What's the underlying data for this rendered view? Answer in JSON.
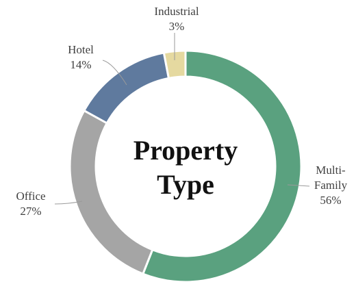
{
  "chart_data": {
    "type": "donut",
    "title": "Property Type",
    "categories": [
      "Multi-Family",
      "Office",
      "Hotel",
      "Industrial"
    ],
    "values": [
      56,
      27,
      14,
      3
    ],
    "value_labels": [
      "56%",
      "27%",
      "14%",
      "3%"
    ],
    "colors": [
      "#5aa17f",
      "#a5a5a5",
      "#5f7a9e",
      "#e5d9a0"
    ]
  }
}
